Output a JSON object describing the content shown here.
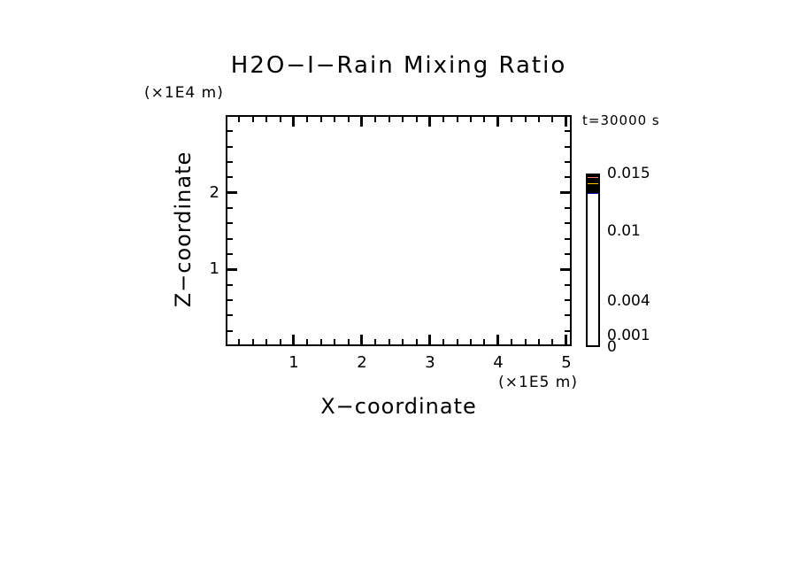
{
  "chart": {
    "title": "H2O−I−Rain Mixing Ratio",
    "y_unit": "(×1E4 m)",
    "x_unit": "(×1E5 m)",
    "xlabel": "X−coordinate",
    "ylabel": "Z−coordinate",
    "time_label": "t=30000 s"
  },
  "chart_data": {
    "type": "heatmap",
    "title": "H2O-I-Rain Mixing Ratio",
    "xlabel": "X-coordinate",
    "ylabel": "Z-coordinate",
    "x_axis_unit": "x1E5 m",
    "y_axis_unit": "x1E4 m",
    "time_annotation": "t=30000 s",
    "xlim": [
      0,
      5.08
    ],
    "ylim": [
      0,
      3.01
    ],
    "x_major_ticks": [
      1,
      2,
      3,
      4,
      5
    ],
    "y_major_ticks": [
      1,
      2
    ],
    "minor_tick_step": 0.2,
    "grid": false,
    "plot_content": "empty - no contour/fill data visible in plot area (field is zero everywhere)",
    "colorbar": {
      "orientation": "vertical",
      "position": "right",
      "min": 0,
      "max": 0.015,
      "levels": [
        0,
        0.001,
        0.002,
        0.003,
        0.004,
        0.006,
        0.008,
        0.01,
        0.012,
        0.014,
        0.015
      ],
      "colors_bottom_to_top": [
        "#0000A0",
        "#0030E8",
        "#00E1F0",
        "#00EE55",
        "#F4F400",
        "#FFC800",
        "#FF9C00",
        "#FB0A0A",
        "#FF7B7B",
        "#FFB6C1"
      ],
      "labeled_levels": [
        0.015,
        0.01,
        0.004,
        0.001,
        0
      ],
      "labels": [
        "0.015",
        "0.01",
        "0.004",
        "0.001",
        "0"
      ]
    }
  }
}
